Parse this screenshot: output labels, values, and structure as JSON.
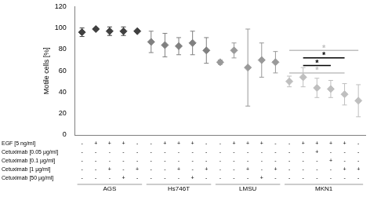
{
  "chart_data": {
    "type": "scatter",
    "y_label": "Motile cells [%]",
    "ylim": [
      0,
      120
    ],
    "yticks": [
      0,
      20,
      40,
      60,
      80,
      100,
      120
    ],
    "grid": false,
    "tick_labels": "y",
    "marker": "diamond",
    "series": [
      {
        "name": "AGS",
        "color": "#404040",
        "values": [
          96,
          99,
          97,
          97,
          97
        ],
        "errors": [
          4,
          1,
          4,
          4,
          0.5
        ]
      },
      {
        "name": "Hs746T",
        "color": "#808080",
        "values": [
          87,
          84,
          83,
          86,
          79
        ],
        "errors": [
          10,
          11,
          8,
          11,
          12
        ]
      },
      {
        "name": "LMSU",
        "color": "#999999",
        "values": [
          68,
          79,
          63,
          70,
          68
        ],
        "errors": [
          2,
          7,
          36,
          16,
          10
        ]
      },
      {
        "name": "MKN1",
        "color": "#bfbfbf",
        "values": [
          50,
          54,
          44,
          43,
          38,
          32
        ],
        "errors": [
          5,
          9,
          9,
          8,
          10,
          15
        ]
      }
    ],
    "conditions": [
      {
        "label": "EGF [5 ng/ml]",
        "signs": [
          "-",
          "+",
          "+",
          "+",
          "-",
          "-",
          "+",
          "+",
          "+",
          "-",
          "-",
          "+",
          "+",
          "+",
          "-",
          "-",
          "+",
          "+",
          "+",
          "+",
          "-"
        ]
      },
      {
        "label": "Cetuximab [0.05 µg/ml]",
        "signs": [
          "-",
          "-",
          "-",
          "-",
          "-",
          "-",
          "-",
          "-",
          "-",
          "-",
          "-",
          "-",
          "-",
          "-",
          "-",
          "-",
          "-",
          "+",
          "-",
          "-",
          "-"
        ]
      },
      {
        "label": "Cetuximab [0.1 µg/ml]",
        "signs": [
          "-",
          "-",
          "-",
          "-",
          "-",
          "-",
          "-",
          "-",
          "-",
          "-",
          "-",
          "-",
          "-",
          "-",
          "-",
          "-",
          "-",
          "-",
          "+",
          "-",
          "-"
        ]
      },
      {
        "label": "Cetuximab [1 µg/ml]",
        "signs": [
          "-",
          "-",
          "+",
          "-",
          "+",
          "-",
          "-",
          "+",
          "-",
          "+",
          "-",
          "-",
          "+",
          "-",
          "+",
          "-",
          "-",
          "-",
          "-",
          "+",
          "+"
        ]
      },
      {
        "label": "Cetuximab [50 µg/ml]",
        "signs": [
          "-",
          "-",
          "-",
          "+",
          "-",
          "-",
          "-",
          "-",
          "+",
          "-",
          "-",
          "-",
          "-",
          "+",
          "-",
          "-",
          "-",
          "-",
          "-",
          "-",
          "-"
        ]
      }
    ],
    "significance": [
      {
        "from": 15,
        "to": 20,
        "y": 79,
        "label": "*",
        "color": "#bfbfbf"
      },
      {
        "from": 16,
        "to": 19,
        "y": 72,
        "label": "*",
        "color": "#000000"
      },
      {
        "from": 16,
        "to": 18,
        "y": 65,
        "label": "*",
        "color": "#000000"
      },
      {
        "from": 15,
        "to": 19,
        "y": 58,
        "label": "*",
        "color": "#bfbfbf"
      }
    ]
  }
}
